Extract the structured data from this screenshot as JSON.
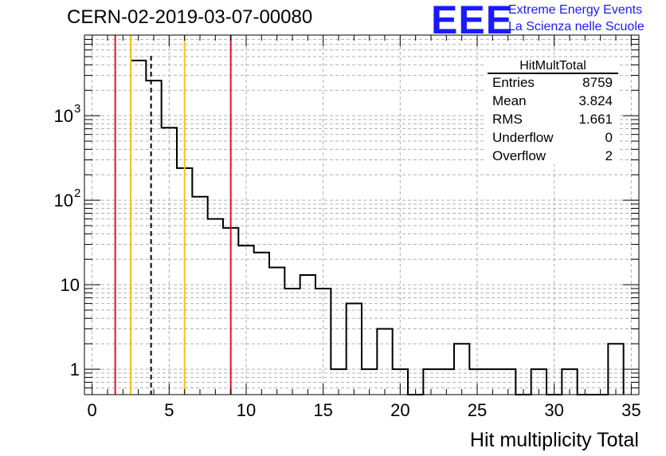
{
  "header": {
    "title": "CERN-02-2019-03-07-00080",
    "logo_text": "EEE",
    "logo_line1": "Extreme Energy Events",
    "logo_line2": "La Scienza nelle Scuole"
  },
  "stats": {
    "name": "HitMultTotal",
    "rows": [
      {
        "label": "Entries",
        "value": "8759"
      },
      {
        "label": "Mean",
        "value": "3.824"
      },
      {
        "label": "RMS",
        "value": "1.661"
      },
      {
        "label": "Underflow",
        "value": "0"
      },
      {
        "label": "Overflow",
        "value": "2"
      }
    ]
  },
  "colors": {
    "red": "#e8101e",
    "orange": "#f2c418",
    "histogram": "#000000",
    "grid": "#b0b0b0"
  },
  "chart_data": {
    "type": "histogram",
    "xlabel": "Hit multiplicity Total",
    "ylabel": "",
    "xlim": [
      -0.5,
      35.5
    ],
    "ylim": [
      0.5,
      9000
    ],
    "log_y": true,
    "grid": true,
    "x_ticks": [
      0,
      5,
      10,
      15,
      20,
      25,
      30,
      35
    ],
    "y_ticks": [
      {
        "value": 1,
        "label": "1"
      },
      {
        "value": 10,
        "label": "10"
      },
      {
        "value": 100,
        "label": "10",
        "exp": "2"
      },
      {
        "value": 1000,
        "label": "10",
        "exp": "3"
      }
    ],
    "bin_width": 1,
    "bin_lo": [
      2.5,
      3.5,
      4.5,
      5.5,
      6.5,
      7.5,
      8.5,
      9.5,
      10.5,
      11.5,
      12.5,
      13.5,
      14.5,
      15.5,
      16.5,
      17.5,
      18.5,
      19.5,
      20.5,
      21.5,
      22.5,
      23.5,
      24.5,
      25.5,
      26.5,
      27.5,
      28.5,
      29.5,
      30.5,
      31.5,
      32.5,
      33.5
    ],
    "counts": [
      4500,
      2600,
      720,
      240,
      110,
      60,
      47,
      29,
      24,
      16,
      9,
      13,
      9,
      1,
      6,
      1,
      3,
      1,
      0,
      1,
      1,
      2,
      1,
      1,
      1,
      0,
      1,
      0,
      1,
      0,
      0,
      2
    ],
    "vertical_lines": [
      {
        "x": 1.5,
        "color": "red",
        "style": "solid"
      },
      {
        "x": 2.5,
        "color": "orange",
        "style": "solid"
      },
      {
        "x": 3.824,
        "color": "black",
        "style": "dashed"
      },
      {
        "x": 6.0,
        "color": "orange",
        "style": "solid"
      },
      {
        "x": 9.0,
        "color": "red",
        "style": "solid"
      }
    ]
  }
}
